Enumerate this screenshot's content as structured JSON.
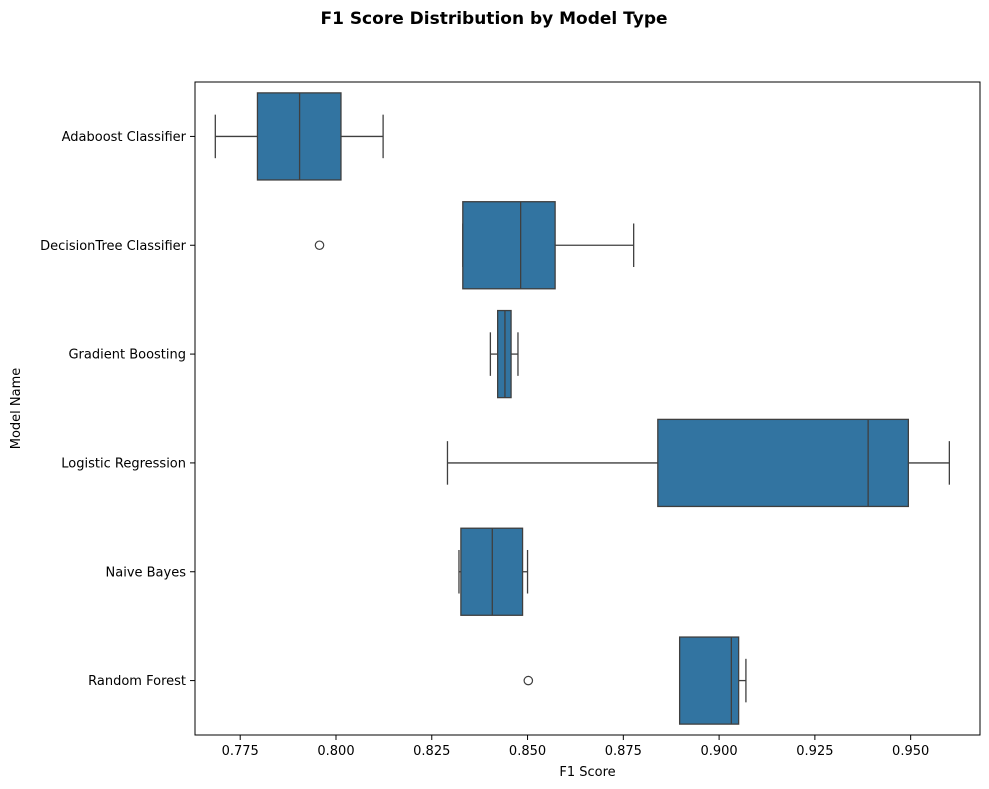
{
  "chart_data": {
    "type": "box",
    "orientation": "horizontal",
    "title": "F1 Score Distribution by Model Type",
    "xlabel": "F1 Score",
    "ylabel": "Model Name",
    "xlim": [
      0.7632,
      0.9681
    ],
    "xticks": [
      "0.775",
      "0.800",
      "0.825",
      "0.850",
      "0.875",
      "0.900",
      "0.925",
      "0.950"
    ],
    "grid": false,
    "box_color": "#3274a1",
    "line_color": "#3f3f3f",
    "categories": [
      "Adaboost Classifier",
      "DecisionTree Classifier",
      "Gradient Boosting",
      "Logistic Regression",
      "Naive Bayes",
      "Random Forest"
    ],
    "boxes": [
      {
        "name": "Adaboost Classifier",
        "whisker_low": 0.7685,
        "q1": 0.7795,
        "median": 0.7905,
        "q3": 0.8013,
        "whisker_high": 0.8123,
        "outliers": []
      },
      {
        "name": "DecisionTree Classifier",
        "whisker_low": 0.8331,
        "q1": 0.8331,
        "median": 0.8482,
        "q3": 0.8572,
        "whisker_high": 0.8777,
        "outliers": [
          0.7957
        ]
      },
      {
        "name": "Gradient Boosting",
        "whisker_low": 0.8403,
        "q1": 0.8422,
        "median": 0.8441,
        "q3": 0.8457,
        "whisker_high": 0.8475,
        "outliers": []
      },
      {
        "name": "Logistic Regression",
        "whisker_low": 0.8291,
        "q1": 0.884,
        "median": 0.9389,
        "q3": 0.9494,
        "whisker_high": 0.9601,
        "outliers": []
      },
      {
        "name": "Naive Bayes",
        "whisker_low": 0.8321,
        "q1": 0.8326,
        "median": 0.8408,
        "q3": 0.8487,
        "whisker_high": 0.85,
        "outliers": []
      },
      {
        "name": "Random Forest",
        "whisker_low": 0.8897,
        "q1": 0.8897,
        "median": 0.9032,
        "q3": 0.9051,
        "whisker_high": 0.907,
        "outliers": [
          0.8502
        ]
      }
    ]
  }
}
